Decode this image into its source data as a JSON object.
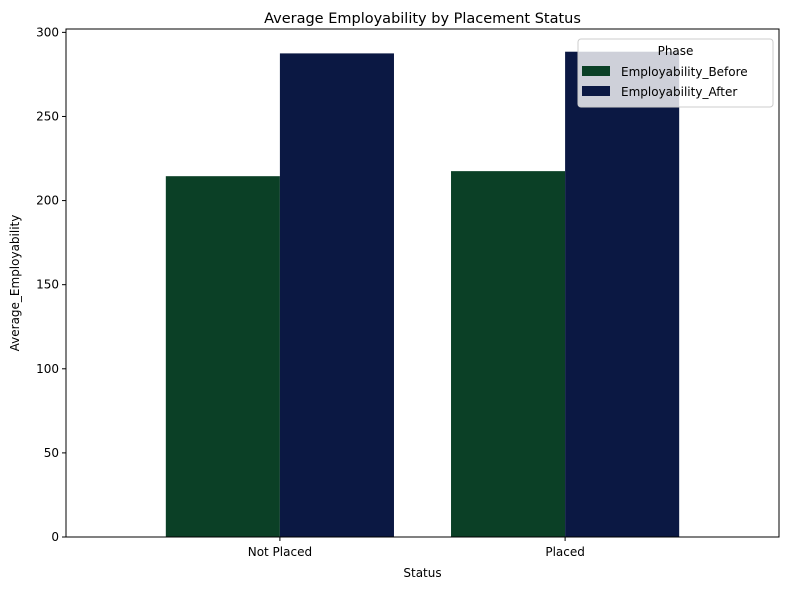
{
  "chart_data": {
    "type": "bar",
    "title": "Average Employability by Placement Status",
    "xlabel": "Status",
    "ylabel": "Average_Employability",
    "categories": [
      "Not Placed",
      "Placed"
    ],
    "series": [
      {
        "name": "Employability_Before",
        "values": [
          214.5,
          217.5
        ],
        "color": "#0b4026"
      },
      {
        "name": "Employability_After",
        "values": [
          287.5,
          288.5
        ],
        "color": "#0b1843"
      }
    ],
    "ylim": [
      0,
      302
    ],
    "yticks": [
      0,
      50,
      100,
      150,
      200,
      250,
      300
    ],
    "grid": false,
    "legend": {
      "title": "Phase",
      "placement": "top-right"
    }
  }
}
